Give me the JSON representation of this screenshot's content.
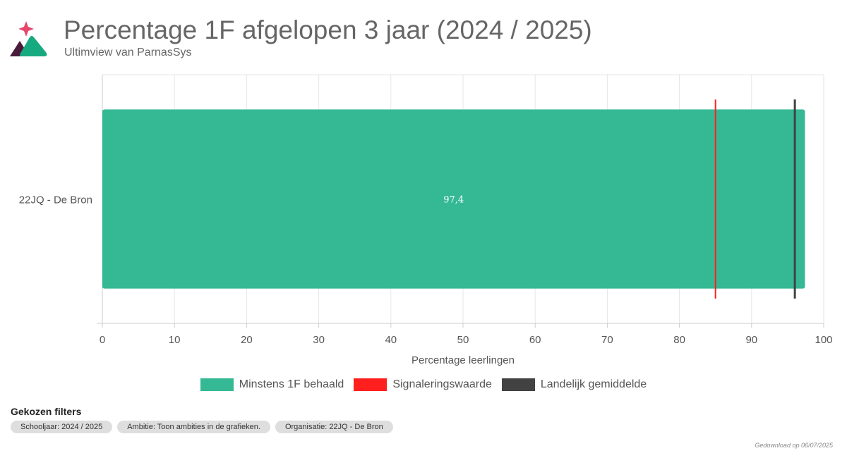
{
  "header": {
    "title": "Percentage 1F afgelopen 3 jaar (2024 / 2025)",
    "subtitle": "Ultimview van ParnasSys",
    "logo_icon": "mountain-star-logo-icon"
  },
  "colors": {
    "bar": "#34b994",
    "signal": "#ff1f1f",
    "national": "#424242",
    "grid": "#e6e6e6",
    "axis": "#cccccc"
  },
  "chart_data": {
    "type": "bar",
    "orientation": "horizontal",
    "title": "Percentage 1F afgelopen 3 jaar (2024 / 2025)",
    "subtitle": "Ultimview van ParnasSys",
    "categories": [
      "22JQ - De Bron"
    ],
    "series": [
      {
        "name": "Minstens 1F behaald",
        "values": [
          97.4
        ],
        "data_labels": [
          "97,4"
        ]
      }
    ],
    "reference_lines": [
      {
        "name": "Signaleringswaarde",
        "value": 85
      },
      {
        "name": "Landelijk gemiddelde",
        "value": 96
      }
    ],
    "xlabel": "Percentage leerlingen",
    "ylabel": "",
    "xlim": [
      0,
      100
    ],
    "xticks": [
      0,
      10,
      20,
      30,
      40,
      50,
      60,
      70,
      80,
      90,
      100
    ],
    "grid": true,
    "legend": "bottom-center"
  },
  "legend": [
    {
      "label": "Minstens 1F behaald",
      "color": "#34b994"
    },
    {
      "label": "Signaleringswaarde",
      "color": "#ff1f1f"
    },
    {
      "label": "Landelijk gemiddelde",
      "color": "#424242"
    }
  ],
  "filters": {
    "title": "Gekozen filters",
    "chips": [
      "Schooljaar: 2024 / 2025",
      "Ambitie: Toon ambities in de grafieken.",
      "Organisatie: 22JQ - De Bron"
    ]
  },
  "footer": "Gedownload op 06/07/2025"
}
